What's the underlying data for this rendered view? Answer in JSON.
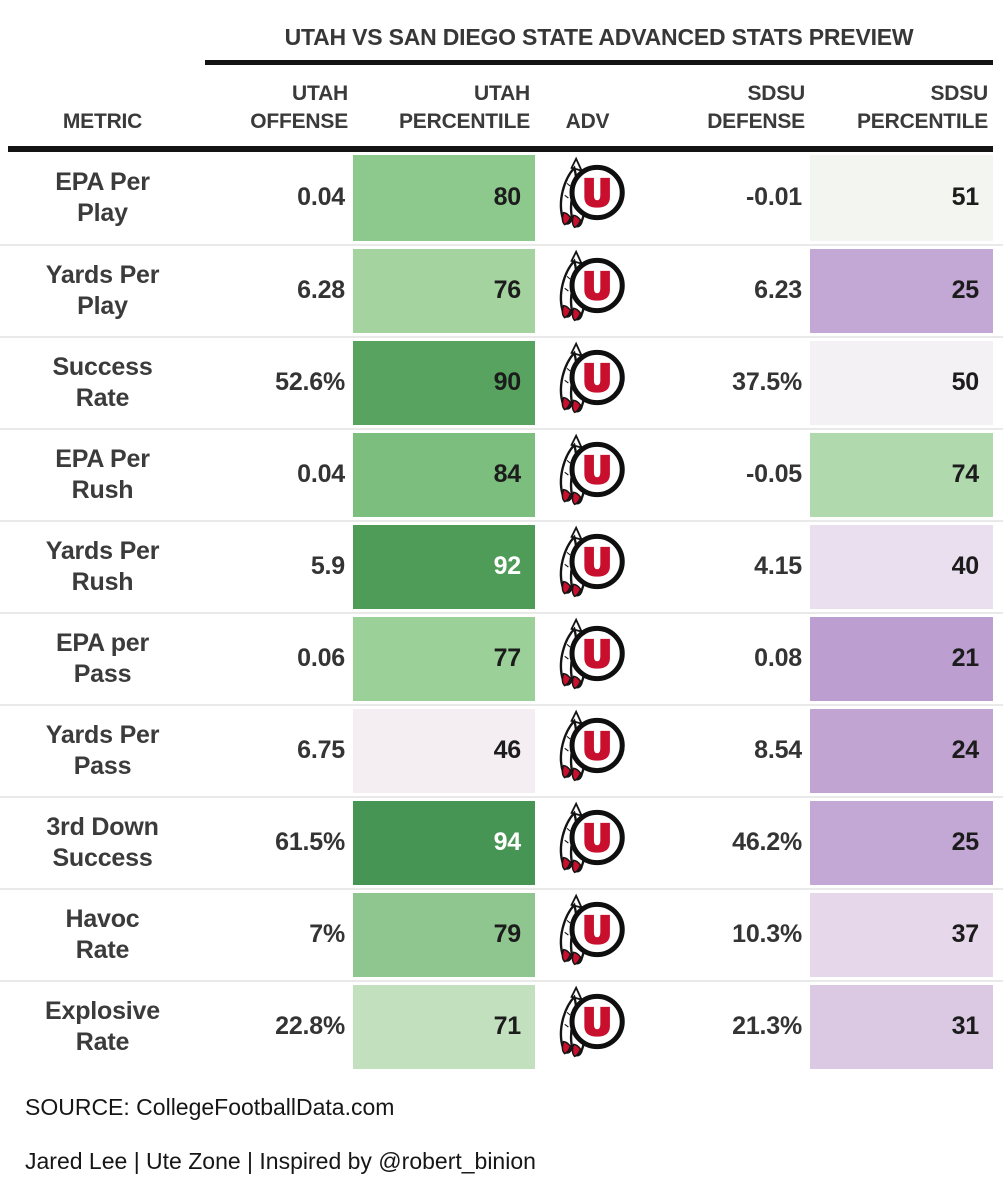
{
  "title": "UTAH VS SAN DIEGO STATE ADVANCED STATS PREVIEW",
  "columns": [
    {
      "id": "metric",
      "lines": [
        "METRIC"
      ]
    },
    {
      "id": "utah_offense",
      "lines": [
        "UTAH",
        "OFFENSE"
      ]
    },
    {
      "id": "utah_percentile",
      "lines": [
        "UTAH",
        "PERCENTILE"
      ]
    },
    {
      "id": "adv",
      "lines": [
        "ADV"
      ]
    },
    {
      "id": "sdsu_defense",
      "lines": [
        "SDSU",
        "DEFENSE"
      ]
    },
    {
      "id": "sdsu_percentile",
      "lines": [
        "SDSU",
        "PERCENTILE"
      ]
    }
  ],
  "chart_data": {
    "type": "table",
    "title": "UTAH VS SAN DIEGO STATE ADVANCED STATS PREVIEW",
    "columns": [
      "METRIC",
      "UTAH OFFENSE",
      "UTAH PERCENTILE",
      "ADV",
      "SDSU DEFENSE",
      "SDSU PERCENTILE"
    ],
    "adv_icon": "utah-utes-logo",
    "colorscale_note": "percentile cells: green = high percentile, purple = low percentile",
    "rows": [
      {
        "metric": "EPA Per Play",
        "metric_lines": [
          "EPA Per",
          "Play"
        ],
        "utah_offense": "0.04",
        "utah_percentile": 80,
        "utah_bg": "#8dc98d",
        "utah_text": "#1c1c1c",
        "sdsu_defense": "-0.01",
        "sdsu_percentile": 51,
        "sdsu_bg": "#f2f5f0",
        "sdsu_text": "#1c1c1c"
      },
      {
        "metric": "Yards Per Play",
        "metric_lines": [
          "Yards Per",
          "Play"
        ],
        "utah_offense": "6.28",
        "utah_percentile": 76,
        "utah_bg": "#a4d3a0",
        "utah_text": "#1c1c1c",
        "sdsu_defense": "6.23",
        "sdsu_percentile": 25,
        "sdsu_bg": "#c3a7d4",
        "sdsu_text": "#1c1c1c"
      },
      {
        "metric": "Success Rate",
        "metric_lines": [
          "Success",
          "Rate"
        ],
        "utah_offense": "52.6%",
        "utah_percentile": 90,
        "utah_bg": "#57a35f",
        "utah_text": "#1c1c1c",
        "sdsu_defense": "37.5%",
        "sdsu_percentile": 50,
        "sdsu_bg": "#f3f1f3",
        "sdsu_text": "#1c1c1c"
      },
      {
        "metric": "EPA Per Rush",
        "metric_lines": [
          "EPA Per",
          "Rush"
        ],
        "utah_offense": "0.04",
        "utah_percentile": 84,
        "utah_bg": "#7cbe7e",
        "utah_text": "#1c1c1c",
        "sdsu_defense": "-0.05",
        "sdsu_percentile": 74,
        "sdsu_bg": "#b1d9ae",
        "sdsu_text": "#1c1c1c"
      },
      {
        "metric": "Yards Per Rush",
        "metric_lines": [
          "Yards Per",
          "Rush"
        ],
        "utah_offense": "5.9",
        "utah_percentile": 92,
        "utah_bg": "#4f9b58",
        "utah_text": "#ffffff",
        "sdsu_defense": "4.15",
        "sdsu_percentile": 40,
        "sdsu_bg": "#eadfee",
        "sdsu_text": "#1c1c1c"
      },
      {
        "metric": "EPA per Pass",
        "metric_lines": [
          "EPA per",
          "Pass"
        ],
        "utah_offense": "0.06",
        "utah_percentile": 77,
        "utah_bg": "#9cd099",
        "utah_text": "#1c1c1c",
        "sdsu_defense": "0.08",
        "sdsu_percentile": 21,
        "sdsu_bg": "#bc9fd0",
        "sdsu_text": "#1c1c1c"
      },
      {
        "metric": "Yards Per Pass",
        "metric_lines": [
          "Yards Per",
          "Pass"
        ],
        "utah_offense": "6.75",
        "utah_percentile": 46,
        "utah_bg": "#f4edf2",
        "utah_text": "#1c1c1c",
        "sdsu_defense": "8.54",
        "sdsu_percentile": 24,
        "sdsu_bg": "#c1a4d2",
        "sdsu_text": "#1c1c1c"
      },
      {
        "metric": "3rd Down Success",
        "metric_lines": [
          "3rd Down",
          "Success"
        ],
        "utah_offense": "61.5%",
        "utah_percentile": 94,
        "utah_bg": "#479554",
        "utah_text": "#ffffff",
        "sdsu_defense": "46.2%",
        "sdsu_percentile": 25,
        "sdsu_bg": "#c3a7d4",
        "sdsu_text": "#1c1c1c"
      },
      {
        "metric": "Havoc Rate",
        "metric_lines": [
          "Havoc",
          "Rate"
        ],
        "utah_offense": "7%",
        "utah_percentile": 79,
        "utah_bg": "#8fc58e",
        "utah_text": "#1c1c1c",
        "sdsu_defense": "10.3%",
        "sdsu_percentile": 37,
        "sdsu_bg": "#e6d7ea",
        "sdsu_text": "#1c1c1c"
      },
      {
        "metric": "Explosive Rate",
        "metric_lines": [
          "Explosive",
          "Rate"
        ],
        "utah_offense": "22.8%",
        "utah_percentile": 71,
        "utah_bg": "#c3e0be",
        "utah_text": "#1c1c1c",
        "sdsu_defense": "21.3%",
        "sdsu_percentile": 31,
        "sdsu_bg": "#dbc9e3",
        "sdsu_text": "#1c1c1c"
      }
    ]
  },
  "footer": {
    "source": "SOURCE: CollegeFootballData.com",
    "credit": "Jared Lee | Ute Zone | Inspired by @robert_binion"
  },
  "colors": {
    "rule_black": "#141414",
    "row_divider": "#e9e9e9",
    "utah_red": "#c8102e",
    "text_dark": "#343434"
  }
}
